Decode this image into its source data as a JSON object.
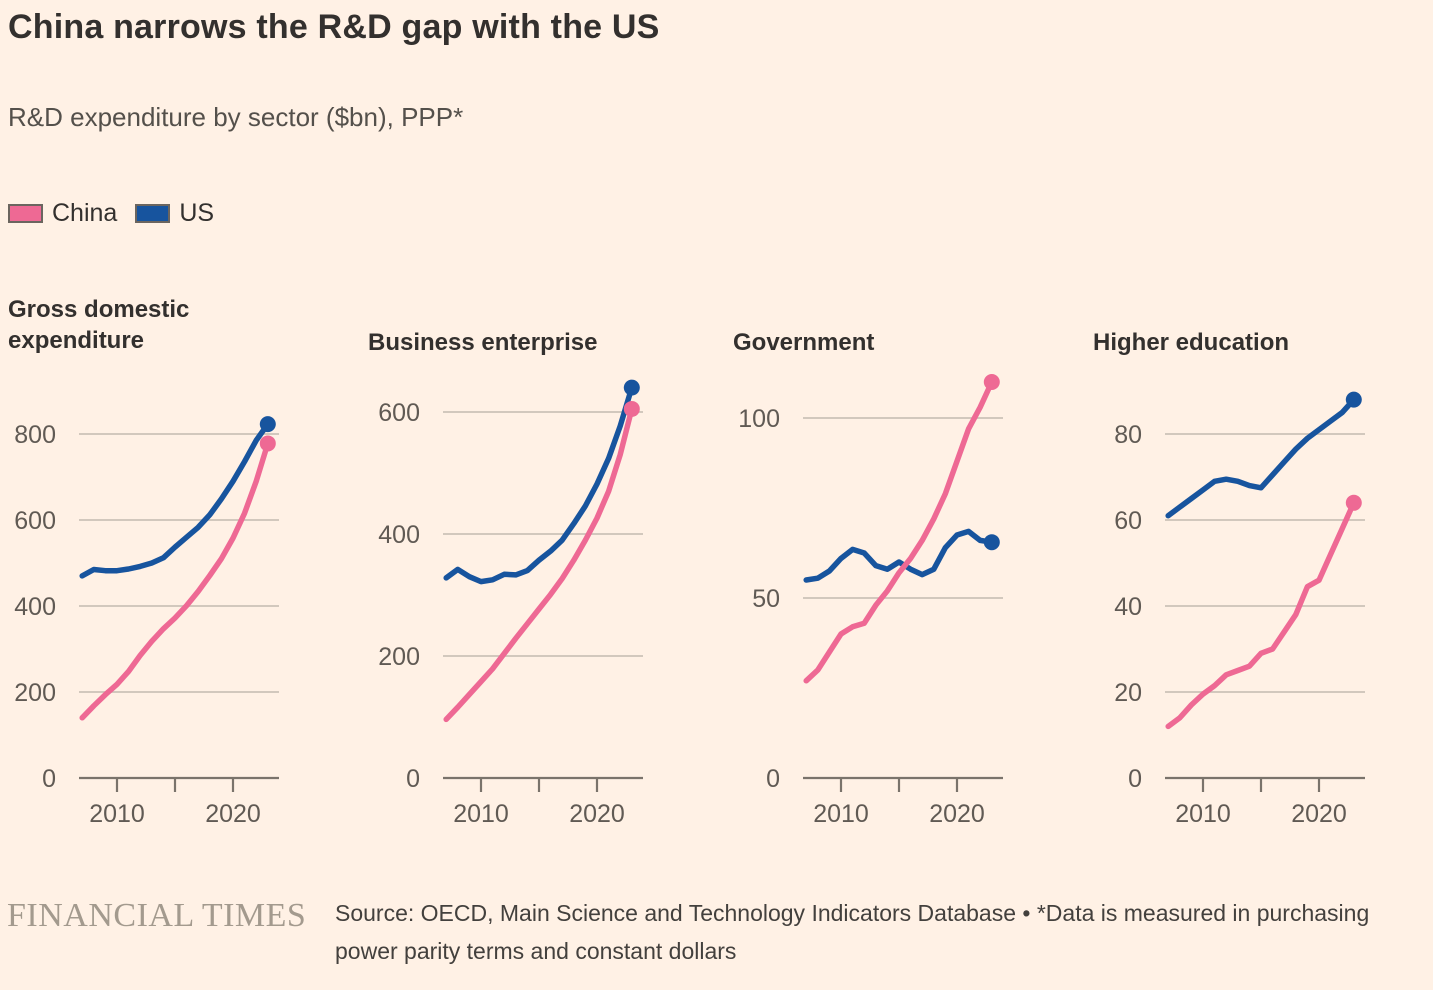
{
  "title": "China narrows the R&D gap with the US",
  "subtitle": "R&D expenditure by sector ($bn), PPP*",
  "legend": [
    {
      "label": "China",
      "color": "#EE6994"
    },
    {
      "label": "US",
      "color": "#17549E"
    }
  ],
  "colors": {
    "background": "#FFF1E5",
    "china": "#EE6994",
    "us": "#17549E",
    "grid": "#CBC2B7",
    "axis": "#7A736B",
    "text": "#33302E",
    "muted": "#605A54"
  },
  "footer": {
    "brand": "FINANCIAL TIMES",
    "source_line1": "Source: OECD, Main Science and Technology Indicators Database • *Data is measured in purchasing",
    "source_line2": "power parity terms and constant dollars"
  },
  "chart_data": [
    {
      "type": "line",
      "title": "Gross domestic expenditure",
      "x_years": [
        2007,
        2008,
        2009,
        2010,
        2011,
        2012,
        2013,
        2014,
        2015,
        2016,
        2017,
        2018,
        2019,
        2020,
        2021,
        2022,
        2023
      ],
      "series": [
        {
          "name": "China",
          "color": "#EE6994",
          "values": [
            140,
            168,
            194,
            218,
            248,
            285,
            318,
            347,
            372,
            401,
            434,
            471,
            510,
            558,
            616,
            690,
            778
          ]
        },
        {
          "name": "US",
          "color": "#17549E",
          "values": [
            470,
            485,
            482,
            482,
            486,
            492,
            500,
            512,
            537,
            560,
            583,
            612,
            649,
            690,
            736,
            785,
            823
          ]
        }
      ],
      "yticks": [
        0,
        200,
        400,
        600,
        800
      ],
      "xticks": [
        2010,
        2015,
        2020
      ],
      "xtick_labels": [
        {
          "value": 2010,
          "label": "2010"
        },
        {
          "value": 2020,
          "label": "2020"
        }
      ],
      "ylim": [
        0,
        880
      ],
      "grid": "horizontal"
    },
    {
      "type": "line",
      "title": "Business enterprise",
      "x_years": [
        2007,
        2008,
        2009,
        2010,
        2011,
        2012,
        2013,
        2014,
        2015,
        2016,
        2017,
        2018,
        2019,
        2020,
        2021,
        2022,
        2023
      ],
      "series": [
        {
          "name": "China",
          "color": "#EE6994",
          "values": [
            96,
            116,
            137,
            158,
            179,
            204,
            229,
            253,
            277,
            301,
            327,
            357,
            390,
            426,
            470,
            530,
            605
          ]
        },
        {
          "name": "US",
          "color": "#17549E",
          "values": [
            328,
            342,
            330,
            322,
            325,
            334,
            333,
            340,
            357,
            372,
            390,
            417,
            446,
            482,
            524,
            577,
            640
          ]
        }
      ],
      "yticks": [
        0,
        200,
        400,
        600
      ],
      "xticks": [
        2010,
        2015,
        2020
      ],
      "xtick_labels": [
        {
          "value": 2010,
          "label": "2010"
        },
        {
          "value": 2020,
          "label": "2020"
        }
      ],
      "ylim": [
        0,
        660
      ],
      "grid": "horizontal"
    },
    {
      "type": "line",
      "title": "Government",
      "x_years": [
        2007,
        2008,
        2009,
        2010,
        2011,
        2012,
        2013,
        2014,
        2015,
        2016,
        2017,
        2018,
        2019,
        2020,
        2021,
        2022,
        2023
      ],
      "series": [
        {
          "name": "China",
          "color": "#EE6994",
          "values": [
            27,
            30,
            35,
            40,
            42,
            43,
            48,
            52,
            57,
            61,
            66,
            72,
            79,
            88,
            97,
            103,
            110
          ]
        },
        {
          "name": "US",
          "color": "#17549E",
          "values": [
            55,
            55.5,
            57.5,
            61,
            63.5,
            62.5,
            59,
            58,
            60,
            58,
            56.5,
            58,
            64,
            67.5,
            68.5,
            66,
            65.5
          ]
        }
      ],
      "yticks": [
        0,
        50,
        100
      ],
      "xticks": [
        2010,
        2015,
        2020
      ],
      "xtick_labels": [
        {
          "value": 2010,
          "label": "2010"
        },
        {
          "value": 2020,
          "label": "2020"
        }
      ],
      "ylim": [
        0,
        115
      ],
      "grid": "horizontal"
    },
    {
      "type": "line",
      "title": "Higher education",
      "x_years": [
        2007,
        2008,
        2009,
        2010,
        2011,
        2012,
        2013,
        2014,
        2015,
        2016,
        2017,
        2018,
        2019,
        2020,
        2021,
        2022,
        2023
      ],
      "series": [
        {
          "name": "China",
          "color": "#EE6994",
          "values": [
            12,
            14,
            17,
            19.5,
            21.5,
            24,
            25,
            26,
            29,
            30,
            34,
            38,
            44.5,
            46,
            52,
            58,
            64
          ]
        },
        {
          "name": "US",
          "color": "#17549E",
          "values": [
            61,
            63,
            65,
            67,
            69,
            69.5,
            69,
            68,
            67.5,
            70.5,
            73.5,
            76.5,
            79,
            81,
            83,
            85,
            88
          ]
        }
      ],
      "yticks": [
        0,
        20,
        40,
        60,
        80
      ],
      "xticks": [
        2010,
        2015,
        2020
      ],
      "xtick_labels": [
        {
          "value": 2010,
          "label": "2010"
        },
        {
          "value": 2020,
          "label": "2020"
        }
      ],
      "ylim": [
        0,
        92
      ],
      "grid": "horizontal"
    }
  ]
}
